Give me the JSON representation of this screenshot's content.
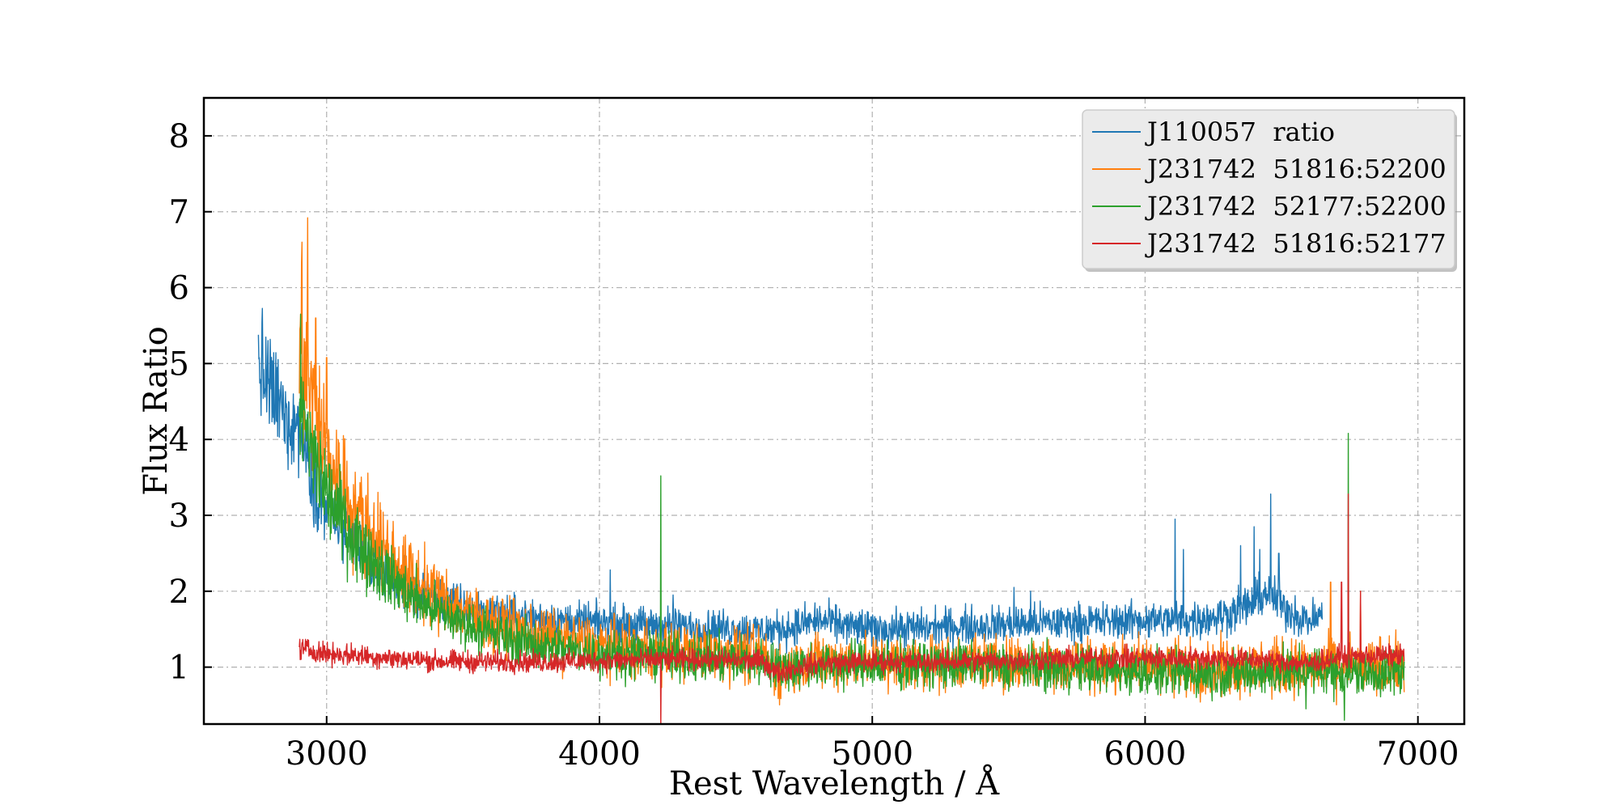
{
  "chart_data": {
    "type": "line",
    "title": "",
    "xlabel": "Rest Wavelength / Å",
    "ylabel": "Flux Ratio",
    "xlim": [
      2550,
      7170
    ],
    "ylim": [
      0.25,
      8.5
    ],
    "xticks": [
      3000,
      4000,
      5000,
      6000,
      7000
    ],
    "yticks": [
      1,
      2,
      3,
      4,
      5,
      6,
      7,
      8
    ],
    "grid": true,
    "legend_position": "top-right",
    "series": [
      {
        "name": "J110057  ratio",
        "color": "#1f77b4",
        "x": [
          2750,
          2800,
          2850,
          2900,
          2950,
          3000,
          3100,
          3200,
          3300,
          3400,
          3500,
          3600,
          3700,
          3800,
          3900,
          4000,
          4200,
          4400,
          4600,
          4700,
          4800,
          4900,
          5000,
          5200,
          5400,
          5600,
          5800,
          6000,
          6200,
          6300,
          6400,
          6450,
          6500,
          6600,
          6650
        ],
        "y": [
          5.0,
          4.6,
          4.3,
          4.2,
          3.5,
          3.1,
          2.6,
          2.25,
          2.05,
          1.9,
          1.8,
          1.72,
          1.68,
          1.63,
          1.6,
          1.58,
          1.55,
          1.52,
          1.48,
          1.52,
          1.62,
          1.55,
          1.5,
          1.52,
          1.55,
          1.58,
          1.6,
          1.62,
          1.63,
          1.7,
          1.85,
          2.0,
          1.8,
          1.6,
          1.7
        ],
        "noise": 0.12
      },
      {
        "name": "J231742  51816:52200",
        "color": "#ff7f0e",
        "x": [
          2900,
          2950,
          3000,
          3050,
          3100,
          3200,
          3300,
          3400,
          3500,
          3600,
          3700,
          3800,
          3900,
          4000,
          4200,
          4400,
          4600,
          4650,
          4700,
          4800,
          5000,
          5200,
          5400,
          5600,
          5800,
          6000,
          6200,
          6400,
          6600,
          6700,
          6800,
          6950
        ],
        "y": [
          5.3,
          4.5,
          3.8,
          3.4,
          3.1,
          2.6,
          2.2,
          1.95,
          1.75,
          1.6,
          1.5,
          1.4,
          1.33,
          1.28,
          1.22,
          1.18,
          1.15,
          0.95,
          1.0,
          1.08,
          1.07,
          1.07,
          1.06,
          1.05,
          1.04,
          1.02,
          1.0,
          1.0,
          1.0,
          1.0,
          1.0,
          1.0
        ],
        "noise": 0.18
      },
      {
        "name": "J231742  52177:52200",
        "color": "#2ca02c",
        "x": [
          2900,
          2950,
          3000,
          3050,
          3100,
          3200,
          3300,
          3400,
          3500,
          3600,
          3700,
          3800,
          3900,
          4000,
          4200,
          4400,
          4600,
          4650,
          4700,
          4800,
          5000,
          5200,
          5400,
          5600,
          5800,
          6000,
          6200,
          6400,
          6600,
          6700,
          6800,
          6950
        ],
        "y": [
          4.3,
          3.8,
          3.3,
          3.0,
          2.7,
          2.3,
          1.95,
          1.75,
          1.58,
          1.45,
          1.35,
          1.28,
          1.22,
          1.18,
          1.14,
          1.1,
          1.08,
          0.98,
          1.0,
          1.03,
          1.03,
          1.03,
          1.02,
          1.0,
          0.97,
          0.94,
          0.92,
          0.92,
          0.95,
          0.95,
          0.9,
          0.95
        ],
        "noise": 0.15
      },
      {
        "name": "J231742  51816:52177",
        "color": "#d62728",
        "x": [
          2900,
          3000,
          3200,
          3400,
          3600,
          3800,
          4000,
          4200,
          4400,
          4600,
          4650,
          4700,
          4800,
          5000,
          5200,
          5400,
          5600,
          5800,
          6000,
          6200,
          6400,
          6600,
          6700,
          6800,
          6950
        ],
        "y": [
          1.25,
          1.18,
          1.13,
          1.08,
          1.07,
          1.07,
          1.08,
          1.1,
          1.1,
          1.08,
          0.92,
          0.98,
          1.05,
          1.07,
          1.07,
          1.08,
          1.1,
          1.12,
          1.12,
          1.12,
          1.1,
          1.05,
          1.12,
          1.15,
          1.15
        ],
        "noise": 0.07
      }
    ],
    "spikes": [
      {
        "series": 0,
        "x": 4040,
        "y": 2.28
      },
      {
        "series": 0,
        "x": 4270,
        "y": 1.95
      },
      {
        "series": 0,
        "x": 5520,
        "y": 2.05
      },
      {
        "series": 0,
        "x": 5580,
        "y": 2.0
      },
      {
        "series": 0,
        "x": 6110,
        "y": 2.95
      },
      {
        "series": 0,
        "x": 6140,
        "y": 2.55
      },
      {
        "series": 0,
        "x": 6350,
        "y": 2.6
      },
      {
        "series": 0,
        "x": 6400,
        "y": 2.85
      },
      {
        "series": 0,
        "x": 6420,
        "y": 2.55
      },
      {
        "series": 0,
        "x": 6460,
        "y": 3.28
      },
      {
        "series": 0,
        "x": 6490,
        "y": 2.5
      },
      {
        "series": 1,
        "x": 2910,
        "y": 6.6
      },
      {
        "series": 1,
        "x": 2930,
        "y": 6.92
      },
      {
        "series": 1,
        "x": 2960,
        "y": 5.6
      },
      {
        "series": 1,
        "x": 3000,
        "y": 5.08
      },
      {
        "series": 1,
        "x": 6680,
        "y": 2.12
      },
      {
        "series": 1,
        "x": 6790,
        "y": 2.0
      },
      {
        "series": 2,
        "x": 2905,
        "y": 5.65
      },
      {
        "series": 2,
        "x": 4225,
        "y": 3.52
      },
      {
        "series": 2,
        "x": 6745,
        "y": 4.08
      },
      {
        "series": 2,
        "x": 6590,
        "y": 0.45
      },
      {
        "series": 2,
        "x": 6730,
        "y": 0.3
      },
      {
        "series": 3,
        "x": 4225,
        "y": 0.2
      },
      {
        "series": 3,
        "x": 6745,
        "y": 3.28
      },
      {
        "series": 3,
        "x": 6720,
        "y": 2.12
      },
      {
        "series": 3,
        "x": 6790,
        "y": 2.0
      }
    ]
  }
}
